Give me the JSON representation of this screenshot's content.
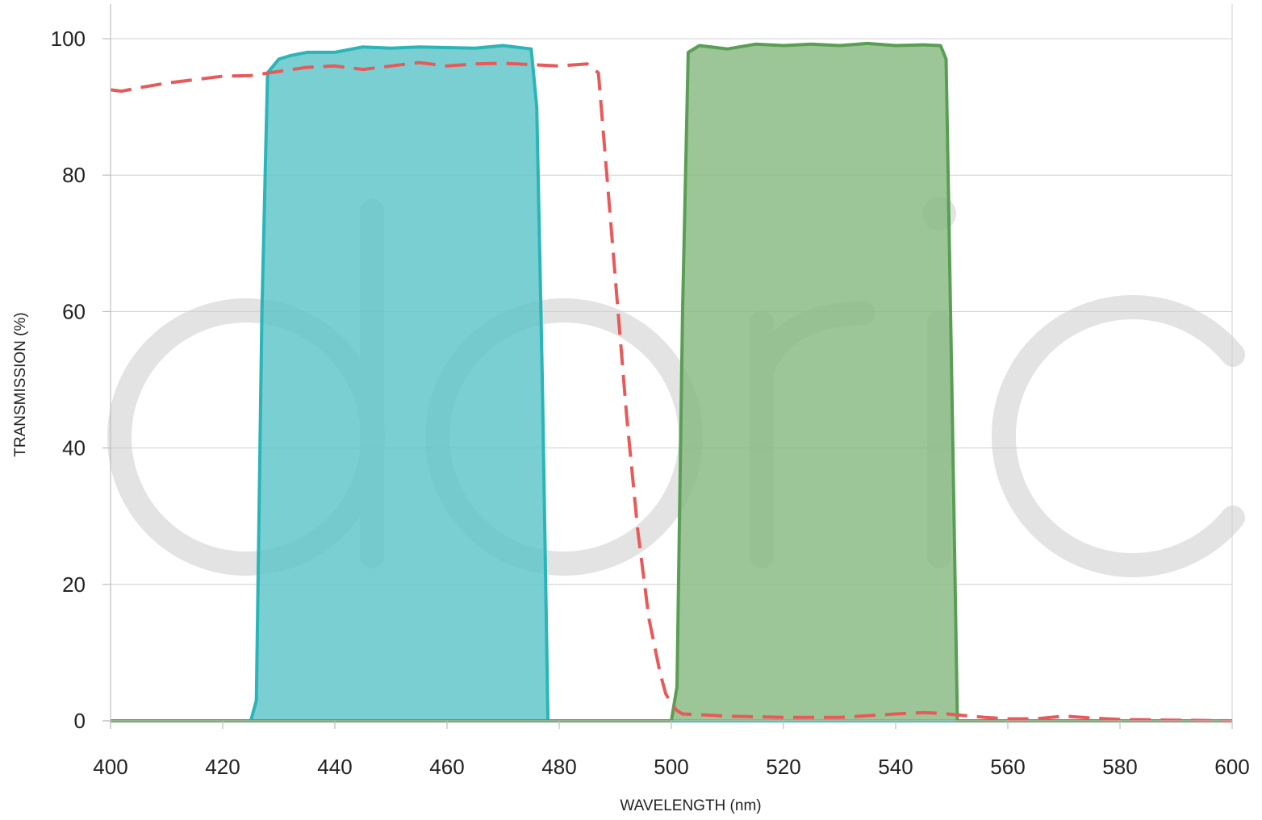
{
  "chart_data": {
    "type": "area",
    "xlabel": "WAVELENGTH (nm)",
    "ylabel": "TRANSMISSION (%)",
    "xlim": [
      400,
      600
    ],
    "ylim": [
      0,
      100
    ],
    "xticks": [
      400,
      420,
      440,
      460,
      480,
      500,
      520,
      540,
      560,
      580,
      600
    ],
    "yticks": [
      0,
      20,
      40,
      60,
      80,
      100
    ],
    "grid": true,
    "watermark": "doric",
    "series": [
      {
        "style": "filled-area",
        "color": "#2bb5b8",
        "fill": "#5cc4c8",
        "x": [
          400,
          425,
          426,
          427,
          428,
          430,
          432,
          435,
          440,
          445,
          450,
          455,
          460,
          465,
          470,
          475,
          476,
          477,
          478,
          600
        ],
        "y": [
          0,
          0,
          3,
          60,
          95,
          97,
          97.5,
          98,
          98,
          98.8,
          98.6,
          98.8,
          98.7,
          98.6,
          99,
          98.5,
          90,
          50,
          0,
          0
        ]
      },
      {
        "style": "filled-area",
        "color": "#5a9e55",
        "fill": "#86ba80",
        "x": [
          400,
          500,
          501,
          502,
          503,
          505,
          510,
          515,
          520,
          525,
          530,
          535,
          540,
          545,
          548,
          549,
          550,
          551,
          600
        ],
        "y": [
          0,
          0,
          5,
          60,
          98,
          99,
          98.5,
          99.2,
          99,
          99.2,
          99,
          99.3,
          99,
          99.1,
          99,
          97,
          50,
          0,
          0
        ]
      },
      {
        "style": "dashed-line",
        "color": "#e85a5a",
        "x": [
          400,
          402,
          405,
          410,
          415,
          420,
          425,
          430,
          435,
          440,
          445,
          450,
          455,
          460,
          465,
          470,
          475,
          480,
          485,
          487,
          488,
          490,
          492,
          494,
          496,
          498,
          499,
          500,
          501,
          502,
          505,
          510,
          520,
          530,
          540,
          545,
          548,
          552,
          556,
          560,
          565,
          570,
          575,
          580,
          590,
          600
        ],
        "y": [
          92.5,
          92.3,
          92.8,
          93.5,
          94,
          94.5,
          94.6,
          95.2,
          95.8,
          96,
          95.5,
          96,
          96.5,
          96,
          96.3,
          96.4,
          96.2,
          96,
          96.3,
          95,
          85,
          65,
          45,
          28,
          15,
          7,
          4,
          2.5,
          1.5,
          1,
          0.9,
          0.7,
          0.5,
          0.5,
          1,
          1.2,
          1.1,
          0.8,
          0.5,
          0.3,
          0.3,
          0.7,
          0.4,
          0.2,
          0.1,
          0
        ]
      }
    ]
  }
}
